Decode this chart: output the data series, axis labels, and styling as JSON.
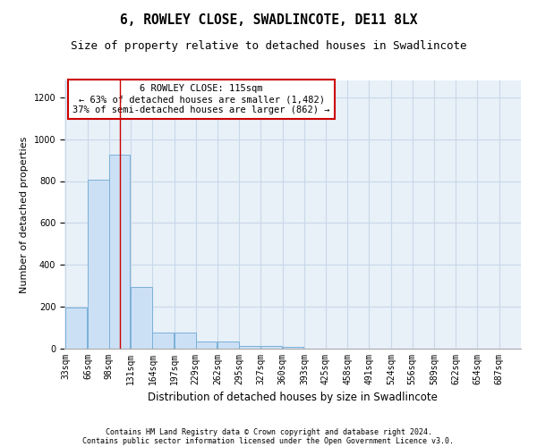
{
  "title": "6, ROWLEY CLOSE, SWADLINCOTE, DE11 8LX",
  "subtitle": "Size of property relative to detached houses in Swadlincote",
  "xlabel": "Distribution of detached houses by size in Swadlincote",
  "ylabel": "Number of detached properties",
  "footer_line1": "Contains HM Land Registry data © Crown copyright and database right 2024.",
  "footer_line2": "Contains public sector information licensed under the Open Government Licence v3.0.",
  "annotation_title": "6 ROWLEY CLOSE: 115sqm",
  "annotation_line1": "← 63% of detached houses are smaller (1,482)",
  "annotation_line2": "37% of semi-detached houses are larger (862) →",
  "bar_color": "#cce0f5",
  "bar_edge_color": "#7ab0d8",
  "vline_color": "#cc0000",
  "vline_x": 115,
  "categories": [
    33,
    66,
    98,
    131,
    164,
    197,
    229,
    262,
    295,
    327,
    360,
    393,
    425,
    458,
    491,
    524,
    556,
    589,
    622,
    654,
    687
  ],
  "bin_width": 33,
  "values": [
    195,
    808,
    926,
    295,
    78,
    78,
    35,
    35,
    14,
    14,
    10,
    0,
    0,
    0,
    0,
    0,
    0,
    0,
    0,
    0,
    0
  ],
  "ylim": [
    0,
    1280
  ],
  "yticks": [
    0,
    200,
    400,
    600,
    800,
    1000,
    1200
  ],
  "grid_color": "#c8d8e8",
  "bg_color": "#e8f0f8",
  "title_fontsize": 10.5,
  "subtitle_fontsize": 9,
  "axis_label_fontsize": 8,
  "tick_fontsize": 7,
  "annotation_fontsize": 7.5,
  "footer_fontsize": 6
}
